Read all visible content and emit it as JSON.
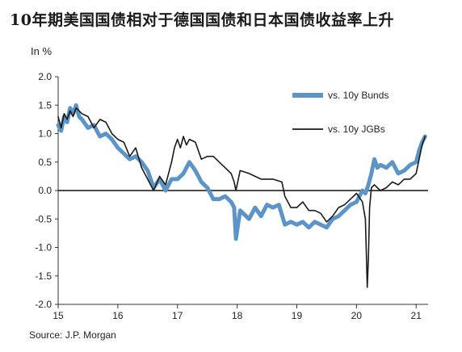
{
  "title": "10年期美国国债相对于德国国债和日本国债收益率上升",
  "unit_label": "In %",
  "source": "Source:  J.P. Morgan",
  "chart_data": {
    "type": "line",
    "ylabel": "In %",
    "ylim": [
      -2.0,
      2.0
    ],
    "yticks": [
      2.0,
      1.5,
      1.0,
      0.5,
      0.0,
      -0.5,
      -1.0,
      -1.5,
      -2.0
    ],
    "ytick_labels": [
      "2.0",
      "1.5",
      "1.0",
      "0.5",
      "0.0",
      "-0.5",
      "-1.0",
      "-1.5",
      "-2.0"
    ],
    "xlim": [
      2015.0,
      2021.2
    ],
    "xticks": [
      2015,
      2016,
      2017,
      2018,
      2019,
      2020,
      2021
    ],
    "xtick_labels": [
      "15",
      "16",
      "17",
      "18",
      "19",
      "20",
      "21"
    ],
    "zero_line": true,
    "grid": false,
    "legend_position": "top-right",
    "series": [
      {
        "name": "vs. 10y Bunds",
        "color": "#5b95c8",
        "x": [
          2015.0,
          2015.05,
          2015.1,
          2015.15,
          2015.2,
          2015.25,
          2015.3,
          2015.35,
          2015.4,
          2015.5,
          2015.6,
          2015.7,
          2015.8,
          2015.9,
          2016.0,
          2016.1,
          2016.2,
          2016.3,
          2016.4,
          2016.5,
          2016.55,
          2016.6,
          2016.7,
          2016.8,
          2016.9,
          2017.0,
          2017.1,
          2017.2,
          2017.3,
          2017.4,
          2017.5,
          2017.6,
          2017.7,
          2017.8,
          2017.9,
          2017.95,
          2017.98,
          2018.05,
          2018.1,
          2018.2,
          2018.3,
          2018.4,
          2018.5,
          2018.6,
          2018.7,
          2018.8,
          2018.9,
          2019.0,
          2019.1,
          2019.2,
          2019.3,
          2019.4,
          2019.5,
          2019.6,
          2019.7,
          2019.8,
          2019.9,
          2020.0,
          2020.05,
          2020.1,
          2020.15,
          2020.2,
          2020.25,
          2020.3,
          2020.35,
          2020.4,
          2020.5,
          2020.6,
          2020.7,
          2020.8,
          2020.9,
          2021.0,
          2021.05,
          2021.1,
          2021.15
        ],
        "values": [
          1.15,
          1.05,
          1.3,
          1.2,
          1.45,
          1.35,
          1.5,
          1.3,
          1.25,
          1.1,
          1.15,
          0.95,
          1.0,
          0.9,
          0.75,
          0.65,
          0.55,
          0.6,
          0.5,
          0.35,
          0.2,
          0.05,
          0.2,
          0.0,
          0.2,
          0.2,
          0.3,
          0.5,
          0.35,
          0.15,
          0.05,
          -0.15,
          -0.15,
          -0.1,
          -0.2,
          -0.3,
          -0.85,
          -0.35,
          -0.4,
          -0.5,
          -0.3,
          -0.45,
          -0.25,
          -0.3,
          -0.25,
          -0.6,
          -0.55,
          -0.6,
          -0.55,
          -0.65,
          -0.55,
          -0.6,
          -0.65,
          -0.5,
          -0.45,
          -0.35,
          -0.25,
          -0.2,
          -0.1,
          0.0,
          -0.05,
          0.1,
          0.3,
          0.55,
          0.4,
          0.45,
          0.4,
          0.5,
          0.3,
          0.35,
          0.45,
          0.5,
          0.7,
          0.85,
          0.95
        ]
      },
      {
        "name": "vs. 10y JGBs",
        "color": "#1a1a1a",
        "x": [
          2015.0,
          2015.05,
          2015.1,
          2015.15,
          2015.2,
          2015.25,
          2015.3,
          2015.4,
          2015.5,
          2015.6,
          2015.7,
          2015.8,
          2015.9,
          2016.0,
          2016.1,
          2016.2,
          2016.3,
          2016.4,
          2016.45,
          2016.5,
          2016.6,
          2016.7,
          2016.8,
          2016.9,
          2016.95,
          2017.0,
          2017.05,
          2017.1,
          2017.15,
          2017.2,
          2017.3,
          2017.4,
          2017.5,
          2017.6,
          2017.7,
          2017.8,
          2017.9,
          2017.95,
          2017.98,
          2018.05,
          2018.2,
          2018.4,
          2018.6,
          2018.75,
          2018.8,
          2018.9,
          2019.0,
          2019.1,
          2019.2,
          2019.3,
          2019.4,
          2019.5,
          2019.6,
          2019.7,
          2019.8,
          2019.9,
          2020.0,
          2020.1,
          2020.15,
          2020.18,
          2020.2,
          2020.22,
          2020.25,
          2020.3,
          2020.4,
          2020.5,
          2020.6,
          2020.7,
          2020.8,
          2020.9,
          2021.0,
          2021.05,
          2021.1,
          2021.15
        ],
        "values": [
          1.3,
          1.1,
          1.35,
          1.25,
          1.4,
          1.3,
          1.45,
          1.35,
          1.3,
          1.1,
          1.25,
          1.2,
          1.0,
          0.9,
          0.85,
          0.6,
          0.75,
          0.4,
          0.3,
          0.2,
          0.0,
          0.25,
          0.1,
          0.5,
          0.75,
          0.9,
          0.75,
          0.95,
          0.8,
          0.9,
          0.85,
          0.55,
          0.6,
          0.6,
          0.5,
          0.4,
          0.3,
          0.15,
          0.0,
          0.35,
          0.3,
          0.2,
          0.2,
          0.15,
          -0.1,
          -0.3,
          -0.3,
          -0.2,
          -0.35,
          -0.35,
          -0.4,
          -0.55,
          -0.45,
          -0.3,
          -0.25,
          -0.15,
          -0.05,
          -0.2,
          -0.5,
          -1.7,
          -1.2,
          -0.3,
          0.05,
          0.1,
          0.0,
          0.05,
          0.15,
          0.1,
          0.2,
          0.2,
          0.3,
          0.55,
          0.8,
          0.95
        ]
      }
    ]
  }
}
